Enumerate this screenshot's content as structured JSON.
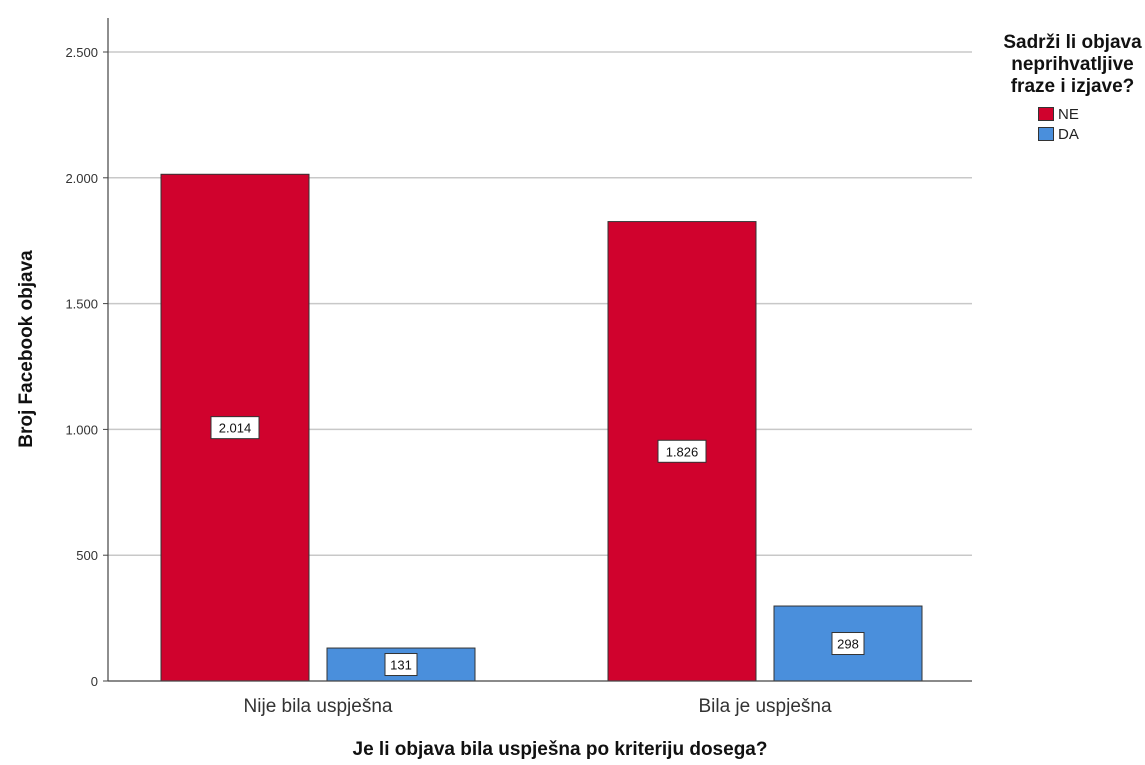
{
  "chart_data": {
    "type": "bar",
    "xlabel": "Je li objava bila uspješna po kriteriju dosega?",
    "ylabel": "Broj Facebook objava",
    "ylim": [
      0,
      2500
    ],
    "yticks": [
      0,
      500,
      1000,
      1500,
      2000,
      2500
    ],
    "ytick_labels": [
      "0",
      "500",
      "1.000",
      "1.500",
      "2.000",
      "2.500"
    ],
    "grid": true,
    "categories": [
      "Nije bila uspješna",
      "Bila je uspješna"
    ],
    "series": [
      {
        "name": "NE",
        "color": "#d0022d",
        "values": [
          2014,
          1826
        ],
        "labels": [
          "2.014",
          "1.826"
        ]
      },
      {
        "name": "DA",
        "color": "#4a8fdc",
        "values": [
          131,
          298
        ],
        "labels": [
          "131",
          "298"
        ]
      }
    ],
    "legend": {
      "title": "Sadrži li objava neprihvatljive fraze i izjave?",
      "placement": "right"
    }
  }
}
